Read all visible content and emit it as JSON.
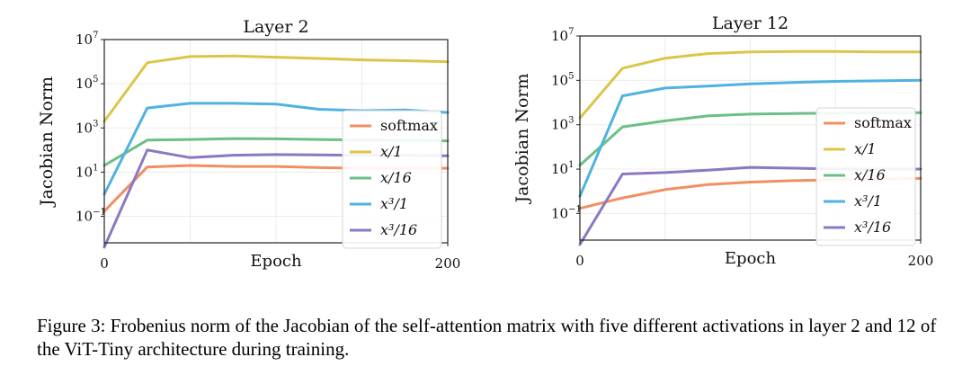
{
  "colors": {
    "softmax": "#f28e64",
    "x/1": "#dcc547",
    "x/16": "#6cbf85",
    "x^3/1": "#4fb2e0",
    "x^3/16": "#8c78c2"
  },
  "chart_data": [
    {
      "type": "line",
      "title": "Layer 2",
      "xlabel": "Epoch",
      "ylabel": "Jacobian Norm",
      "yscale": "log",
      "xlim": [
        0,
        200
      ],
      "ylim_log10": [
        -2.2,
        7
      ],
      "xticks": [
        "0",
        "200"
      ],
      "yticks": [
        {
          "base": "10",
          "exp": "7",
          "v": 7
        },
        {
          "base": "10",
          "exp": "5",
          "v": 5
        },
        {
          "base": "10",
          "exp": "3",
          "v": 3
        },
        {
          "base": "10",
          "exp": "1",
          "v": 1
        },
        {
          "base": "10",
          "exp": "−1",
          "v": -1
        }
      ],
      "grid": true,
      "legend": "right",
      "x": [
        0,
        25,
        50,
        75,
        100,
        125,
        150,
        175,
        200
      ],
      "series": [
        {
          "name": "softmax",
          "label_text": "softmax",
          "values": [
            0.17,
            17,
            20,
            18,
            18,
            16,
            15,
            15,
            15
          ]
        },
        {
          "name": "x/1",
          "label_text": "x/1",
          "values": [
            2000,
            900000,
            1700000,
            1800000,
            1600000,
            1400000,
            1200000,
            1100000,
            1000000
          ]
        },
        {
          "name": "x/16",
          "label_text": "x/16",
          "values": [
            20,
            280,
            300,
            330,
            320,
            300,
            280,
            270,
            260
          ]
        },
        {
          "name": "x^3/1",
          "label_text": "x³/1",
          "values": [
            1,
            8000,
            13000,
            13000,
            12000,
            7000,
            6000,
            6500,
            5000
          ]
        },
        {
          "name": "x^3/16",
          "label_text": "x³/16",
          "values": [
            0.004,
            100,
            45,
            58,
            62,
            60,
            58,
            57,
            55
          ]
        }
      ]
    },
    {
      "type": "line",
      "title": "Layer 12",
      "xlabel": "Epoch",
      "ylabel": "Jacobian Norm",
      "yscale": "log",
      "xlim": [
        0,
        200
      ],
      "ylim_log10": [
        -2.2,
        7
      ],
      "xticks": [
        "0",
        "200"
      ],
      "yticks": [
        {
          "base": "10",
          "exp": "7",
          "v": 7
        },
        {
          "base": "10",
          "exp": "5",
          "v": 5
        },
        {
          "base": "10",
          "exp": "3",
          "v": 3
        },
        {
          "base": "10",
          "exp": "1",
          "v": 1
        },
        {
          "base": "10",
          "exp": "−1",
          "v": -1
        }
      ],
      "grid": true,
      "legend": "right",
      "x": [
        0,
        25,
        50,
        75,
        100,
        125,
        150,
        175,
        200
      ],
      "series": [
        {
          "name": "softmax",
          "label_text": "softmax",
          "values": [
            0.17,
            0.5,
            1.2,
            2,
            2.6,
            3,
            3.3,
            3.6,
            3.8
          ]
        },
        {
          "name": "x/1",
          "label_text": "x/1",
          "values": [
            2000,
            350000,
            1000000,
            1600000,
            1900000,
            2000000,
            2000000,
            1900000,
            1900000
          ]
        },
        {
          "name": "x/16",
          "label_text": "x/16",
          "values": [
            15,
            800,
            1500,
            2500,
            3000,
            3200,
            3300,
            3400,
            3500
          ]
        },
        {
          "name": "x^3/1",
          "label_text": "x³/1",
          "values": [
            0.6,
            20000,
            45000,
            55000,
            70000,
            80000,
            90000,
            95000,
            100000
          ]
        },
        {
          "name": "x^3/16",
          "label_text": "x³/16",
          "values": [
            0.004,
            6,
            7,
            9,
            12,
            11,
            10,
            10,
            10
          ]
        }
      ]
    }
  ],
  "caption": "Figure 3: Frobenius norm of the Jacobian of the self-attention matrix with five different activations in layer 2 and 12 of the ViT-Tiny architecture during training."
}
